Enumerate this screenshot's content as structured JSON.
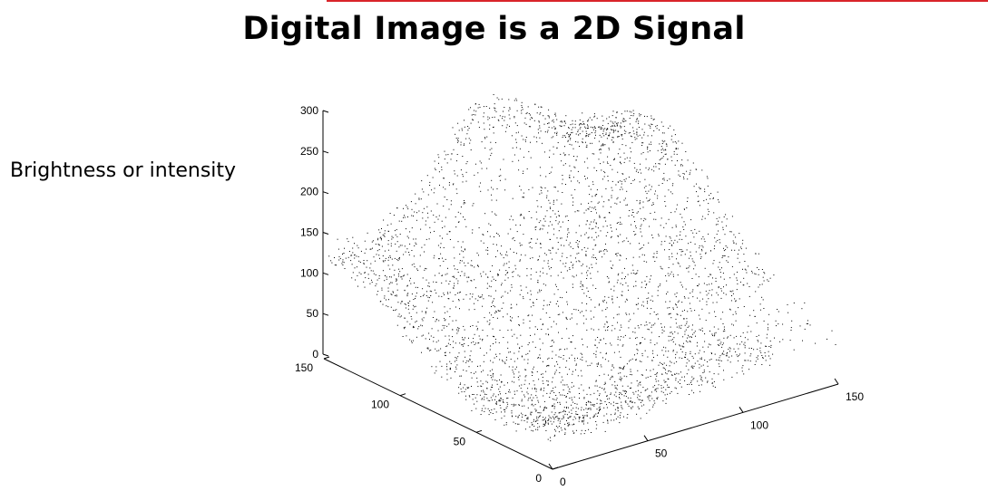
{
  "slide": {
    "title": "Digital Image is a 2D Signal",
    "side_label": "Brightness or intensity",
    "accent_color": "#d9242a"
  },
  "chart_data": {
    "type": "scatter",
    "subtype": "3d-point-cloud",
    "z_axis": {
      "ticks": [
        "0",
        "50",
        "100",
        "150",
        "200",
        "250",
        "300"
      ],
      "range": [
        0,
        300
      ]
    },
    "x_axis": {
      "ticks": [
        "0",
        "50",
        "100",
        "150"
      ],
      "range": [
        0,
        150
      ]
    },
    "y_axis": {
      "ticks": [
        "0",
        "50",
        "100",
        "150"
      ],
      "range": [
        0,
        150
      ]
    },
    "grid": false,
    "point_color": "#000000"
  }
}
